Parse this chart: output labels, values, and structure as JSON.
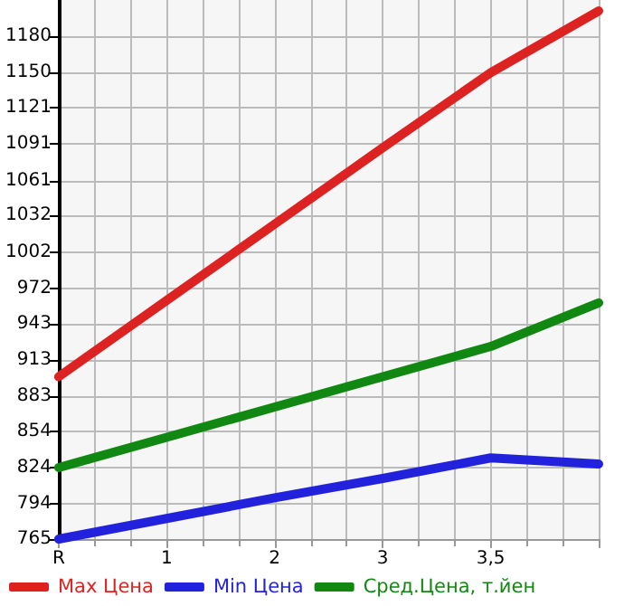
{
  "chart_data": {
    "type": "line",
    "categories": [
      "R",
      "1",
      "2",
      "3",
      "3,5",
      null
    ],
    "series": [
      {
        "name": "Max Цена",
        "color": "#dd2222",
        "values": [
          899,
          962,
          1025,
          1088,
          1150,
          1201
        ]
      },
      {
        "name": "Min Цена",
        "color": "#2222dd",
        "values": [
          765,
          782,
          799,
          815,
          832,
          827
        ]
      },
      {
        "name": "Сред.Цена, т.йен",
        "color": "#118811",
        "values": [
          824,
          849,
          874,
          899,
          924,
          960
        ]
      }
    ],
    "ylim": [
      765,
      1210
    ],
    "yticks": [
      765,
      794,
      824,
      854,
      883,
      913,
      943,
      972,
      1002,
      1032,
      1061,
      1091,
      1121,
      1150,
      1180
    ],
    "grid": true,
    "legend": "bottom",
    "marker": "none",
    "line_style": "solid"
  }
}
